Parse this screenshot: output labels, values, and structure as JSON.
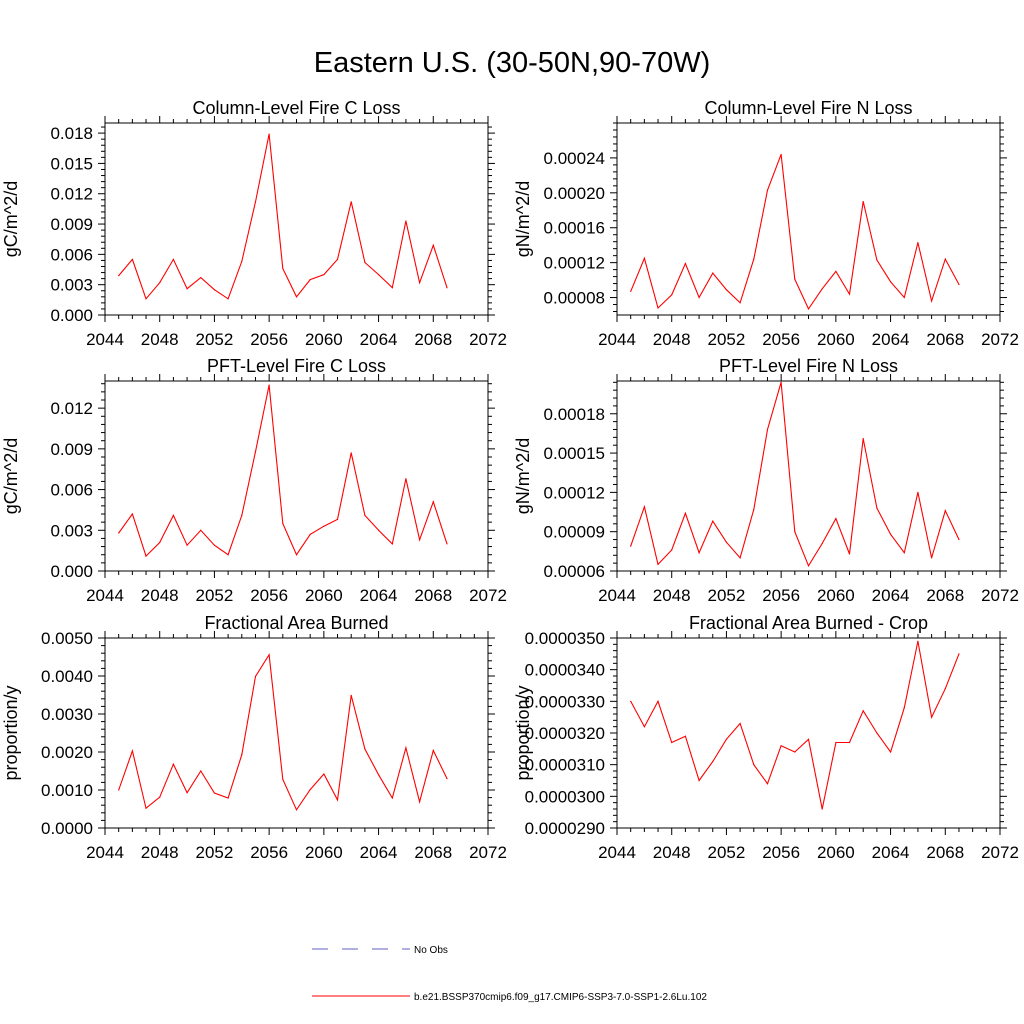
{
  "figure": {
    "title": "Eastern U.S. (30-50N,90-70W)"
  },
  "legend": {
    "entries": [
      {
        "label": "No Obs",
        "style": "dashed",
        "color": "#6060c0"
      },
      {
        "label": "b.e21.BSSP370cmip6.f09_g17.CMIP6-SSP3-7.0-SSP1-2.6Lu.102",
        "style": "solid",
        "color": "#ff0000"
      }
    ]
  },
  "chart_data": [
    {
      "type": "line",
      "title": "Column-Level Fire C Loss",
      "ylabel": "gC/m^2/d",
      "xlim": [
        2044,
        2072
      ],
      "xticks": [
        2044,
        2048,
        2052,
        2056,
        2060,
        2064,
        2068,
        2072
      ],
      "ylim": [
        0,
        0.019
      ],
      "yticks": [
        0,
        0.003,
        0.006,
        0.009,
        0.012,
        0.015,
        0.018
      ],
      "ytick_labels": [
        "0.000",
        "0.003",
        "0.006",
        "0.009",
        "0.012",
        "0.015",
        "0.018"
      ],
      "color": "#ff0000",
      "x": [
        2045,
        2046,
        2047,
        2048,
        2049,
        2050,
        2051,
        2052,
        2053,
        2054,
        2055,
        2056,
        2057,
        2058,
        2059,
        2060,
        2061,
        2062,
        2063,
        2064,
        2065,
        2066,
        2067,
        2068,
        2069
      ],
      "y": [
        0.0039,
        0.0055,
        0.0016,
        0.0032,
        0.0055,
        0.0026,
        0.0037,
        0.0025,
        0.0016,
        0.0053,
        0.0112,
        0.0179,
        0.0046,
        0.0018,
        0.0035,
        0.004,
        0.0055,
        0.0112,
        0.0052,
        0.004,
        0.0027,
        0.0093,
        0.0032,
        0.0069,
        0.0027
      ]
    },
    {
      "type": "line",
      "title": "Column-Level Fire N Loss",
      "ylabel": "gN/m^2/d",
      "xlim": [
        2044,
        2072
      ],
      "xticks": [
        2044,
        2048,
        2052,
        2056,
        2060,
        2064,
        2068,
        2072
      ],
      "ylim": [
        6e-05,
        0.00028
      ],
      "yticks": [
        8e-05,
        0.00012,
        0.00016,
        0.0002,
        0.00024
      ],
      "ytick_labels": [
        "0.00008",
        "0.00012",
        "0.00016",
        "0.00020",
        "0.00024"
      ],
      "color": "#ff0000",
      "x": [
        2045,
        2046,
        2047,
        2048,
        2049,
        2050,
        2051,
        2052,
        2053,
        2054,
        2055,
        2056,
        2057,
        2058,
        2059,
        2060,
        2061,
        2062,
        2063,
        2064,
        2065,
        2066,
        2067,
        2068,
        2069
      ],
      "y": [
        8.7e-05,
        0.000125,
        6.8e-05,
        8.3e-05,
        0.000119,
        8e-05,
        0.000108,
        8.9e-05,
        7.4e-05,
        0.000124,
        0.000203,
        0.000244,
        0.000101,
        6.7e-05,
        9e-05,
        0.00011,
        8.4e-05,
        0.00019,
        0.000123,
        9.8e-05,
        8e-05,
        0.000143,
        7.6e-05,
        0.000124,
        9.5e-05
      ]
    },
    {
      "type": "line",
      "title": "PFT-Level Fire C Loss",
      "ylabel": "gC/m^2/d",
      "xlim": [
        2044,
        2072
      ],
      "xticks": [
        2044,
        2048,
        2052,
        2056,
        2060,
        2064,
        2068,
        2072
      ],
      "ylim": [
        0,
        0.014
      ],
      "yticks": [
        0,
        0.003,
        0.006,
        0.009,
        0.012
      ],
      "ytick_labels": [
        "0.000",
        "0.003",
        "0.006",
        "0.009",
        "0.012"
      ],
      "color": "#ff0000",
      "x": [
        2045,
        2046,
        2047,
        2048,
        2049,
        2050,
        2051,
        2052,
        2053,
        2054,
        2055,
        2056,
        2057,
        2058,
        2059,
        2060,
        2061,
        2062,
        2063,
        2064,
        2065,
        2066,
        2067,
        2068,
        2069
      ],
      "y": [
        0.0028,
        0.0042,
        0.0011,
        0.0021,
        0.0041,
        0.0019,
        0.003,
        0.0019,
        0.0012,
        0.0041,
        0.0088,
        0.0137,
        0.0035,
        0.0012,
        0.0027,
        0.0033,
        0.0038,
        0.0087,
        0.0041,
        0.003,
        0.002,
        0.0068,
        0.0023,
        0.0051,
        0.002
      ]
    },
    {
      "type": "line",
      "title": "PFT-Level Fire N Loss",
      "ylabel": "gN/m^2/d",
      "xlim": [
        2044,
        2072
      ],
      "xticks": [
        2044,
        2048,
        2052,
        2056,
        2060,
        2064,
        2068,
        2072
      ],
      "ylim": [
        6e-05,
        0.000205
      ],
      "yticks": [
        6e-05,
        9e-05,
        0.00012,
        0.00015,
        0.00018
      ],
      "ytick_labels": [
        "0.00006",
        "0.00009",
        "0.00012",
        "0.00015",
        "0.00018"
      ],
      "color": "#ff0000",
      "x": [
        2045,
        2046,
        2047,
        2048,
        2049,
        2050,
        2051,
        2052,
        2053,
        2054,
        2055,
        2056,
        2057,
        2058,
        2059,
        2060,
        2061,
        2062,
        2063,
        2064,
        2065,
        2066,
        2067,
        2068,
        2069
      ],
      "y": [
        7.9e-05,
        0.000109,
        6.5e-05,
        7.6e-05,
        0.000104,
        7.4e-05,
        9.8e-05,
        8.2e-05,
        7e-05,
        0.000107,
        0.000168,
        0.000204,
        9e-05,
        6.4e-05,
        8.1e-05,
        0.0001,
        7.3e-05,
        0.000161,
        0.000108,
        8.8e-05,
        7.4e-05,
        0.00012,
        7e-05,
        0.000106,
        8.4e-05
      ]
    },
    {
      "type": "line",
      "title": "Fractional Area Burned",
      "ylabel": "proportion/y",
      "xlim": [
        2044,
        2072
      ],
      "xticks": [
        2044,
        2048,
        2052,
        2056,
        2060,
        2064,
        2068,
        2072
      ],
      "ylim": [
        0,
        0.005
      ],
      "yticks": [
        0,
        0.001,
        0.002,
        0.003,
        0.004,
        0.005
      ],
      "ytick_labels": [
        "0.0000",
        "0.0010",
        "0.0020",
        "0.0030",
        "0.0040",
        "0.0050"
      ],
      "color": "#ff0000",
      "x": [
        2045,
        2046,
        2047,
        2048,
        2049,
        2050,
        2051,
        2052,
        2053,
        2054,
        2055,
        2056,
        2057,
        2058,
        2059,
        2060,
        2061,
        2062,
        2063,
        2064,
        2065,
        2066,
        2067,
        2068,
        2069
      ],
      "y": [
        0.001,
        0.00203,
        0.00052,
        0.00081,
        0.00168,
        0.00093,
        0.0015,
        0.00092,
        0.00079,
        0.00193,
        0.00399,
        0.00456,
        0.00128,
        0.00048,
        0.00101,
        0.00142,
        0.00074,
        0.00349,
        0.00208,
        0.0014,
        0.00079,
        0.00211,
        0.00069,
        0.00204,
        0.0013
      ]
    },
    {
      "type": "line",
      "title": "Fractional Area Burned - Crop",
      "ylabel": "proportion/y",
      "xlim": [
        2044,
        2072
      ],
      "xticks": [
        2044,
        2048,
        2052,
        2056,
        2060,
        2064,
        2068,
        2072
      ],
      "ylim": [
        2.9e-05,
        3.5e-05
      ],
      "yticks": [
        2.9e-05,
        3e-05,
        3.1e-05,
        3.2e-05,
        3.3e-05,
        3.4e-05,
        3.5e-05
      ],
      "ytick_labels": [
        "0.0000290",
        "0.0000300",
        "0.0000310",
        "0.0000320",
        "0.0000330",
        "0.0000340",
        "0.0000350"
      ],
      "color": "#ff0000",
      "x": [
        2045,
        2046,
        2047,
        2048,
        2049,
        2050,
        2051,
        2052,
        2053,
        2054,
        2055,
        2056,
        2057,
        2058,
        2059,
        2060,
        2061,
        2062,
        2063,
        2064,
        2065,
        2066,
        2067,
        2068,
        2069
      ],
      "y": [
        3.3e-05,
        3.22e-05,
        3.3e-05,
        3.17e-05,
        3.19e-05,
        3.05e-05,
        3.11e-05,
        3.18e-05,
        3.23e-05,
        3.1e-05,
        3.04e-05,
        3.16e-05,
        3.14e-05,
        3.18e-05,
        2.96e-05,
        3.17e-05,
        3.17e-05,
        3.27e-05,
        3.2e-05,
        3.14e-05,
        3.28e-05,
        3.49e-05,
        3.25e-05,
        3.34e-05,
        3.45e-05
      ]
    }
  ]
}
